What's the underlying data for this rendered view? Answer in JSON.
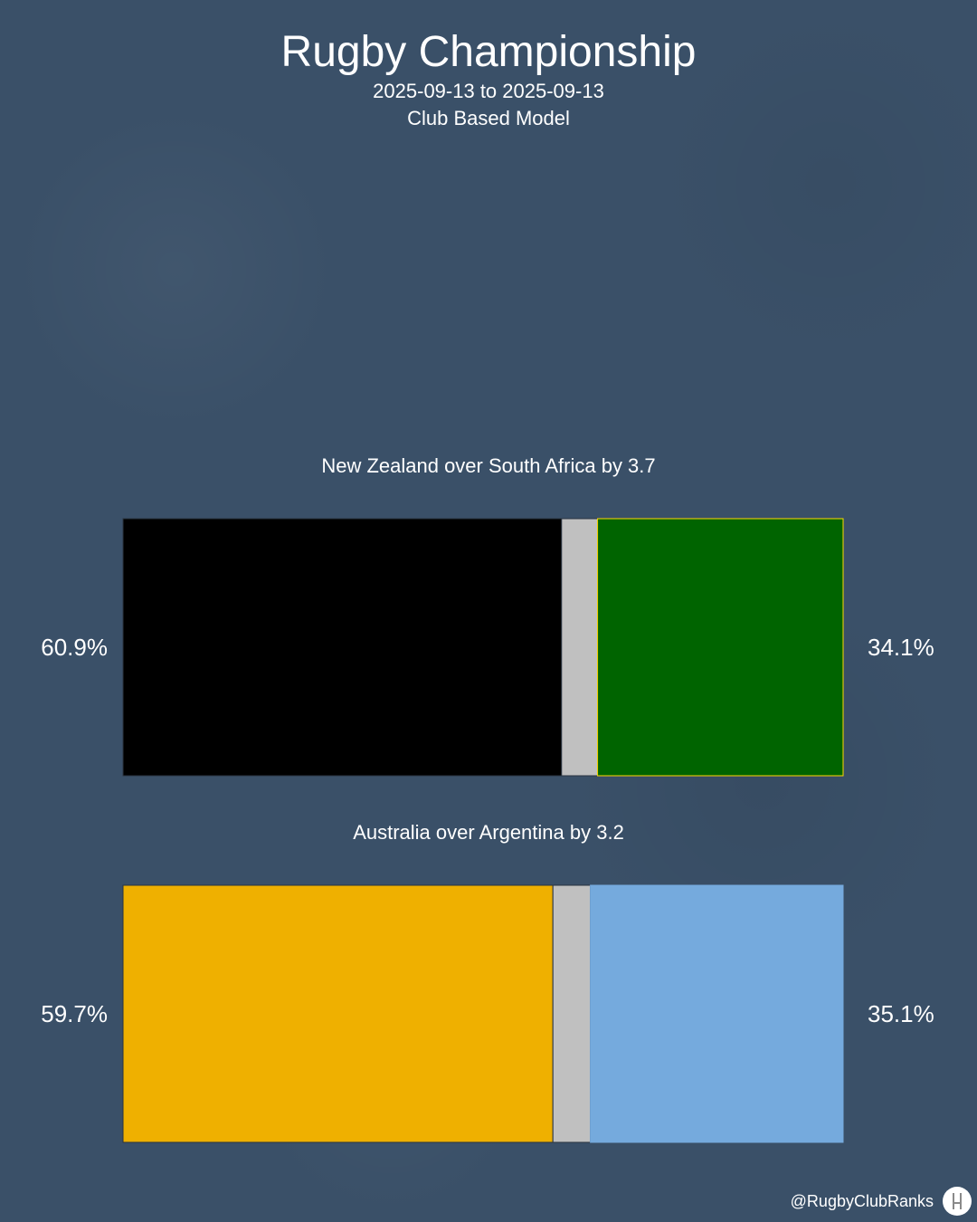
{
  "header": {
    "title": "Rugby Championship",
    "date_range": "2025-09-13 to 2025-09-13",
    "model": "Club Based Model"
  },
  "chart_data": {
    "type": "bar",
    "orientation": "horizontal-stacked",
    "matches": [
      {
        "label": "New Zealand over South Africa by 3.7",
        "home_team": "New Zealand",
        "away_team": "South Africa",
        "home_win_pct": 60.9,
        "draw_pct": 5.0,
        "away_win_pct": 34.1,
        "home_label": "60.9%",
        "away_label": "34.1%",
        "home_color": "#000000",
        "draw_color": "#c0c0c0",
        "away_color": "#006400",
        "away_border": "#ffd700"
      },
      {
        "label": "Australia over Argentina by 3.2",
        "home_team": "Australia",
        "away_team": "Argentina",
        "home_win_pct": 59.7,
        "draw_pct": 5.2,
        "away_win_pct": 35.1,
        "home_label": "59.7%",
        "away_label": "35.1%",
        "home_color": "#efb000",
        "draw_color": "#c0c0c0",
        "away_color": "#75aadd",
        "away_border": "#75aadd"
      }
    ]
  },
  "footer": {
    "handle": "@RugbyClubRanks",
    "logo_icon": "rugby-posts-icon"
  }
}
